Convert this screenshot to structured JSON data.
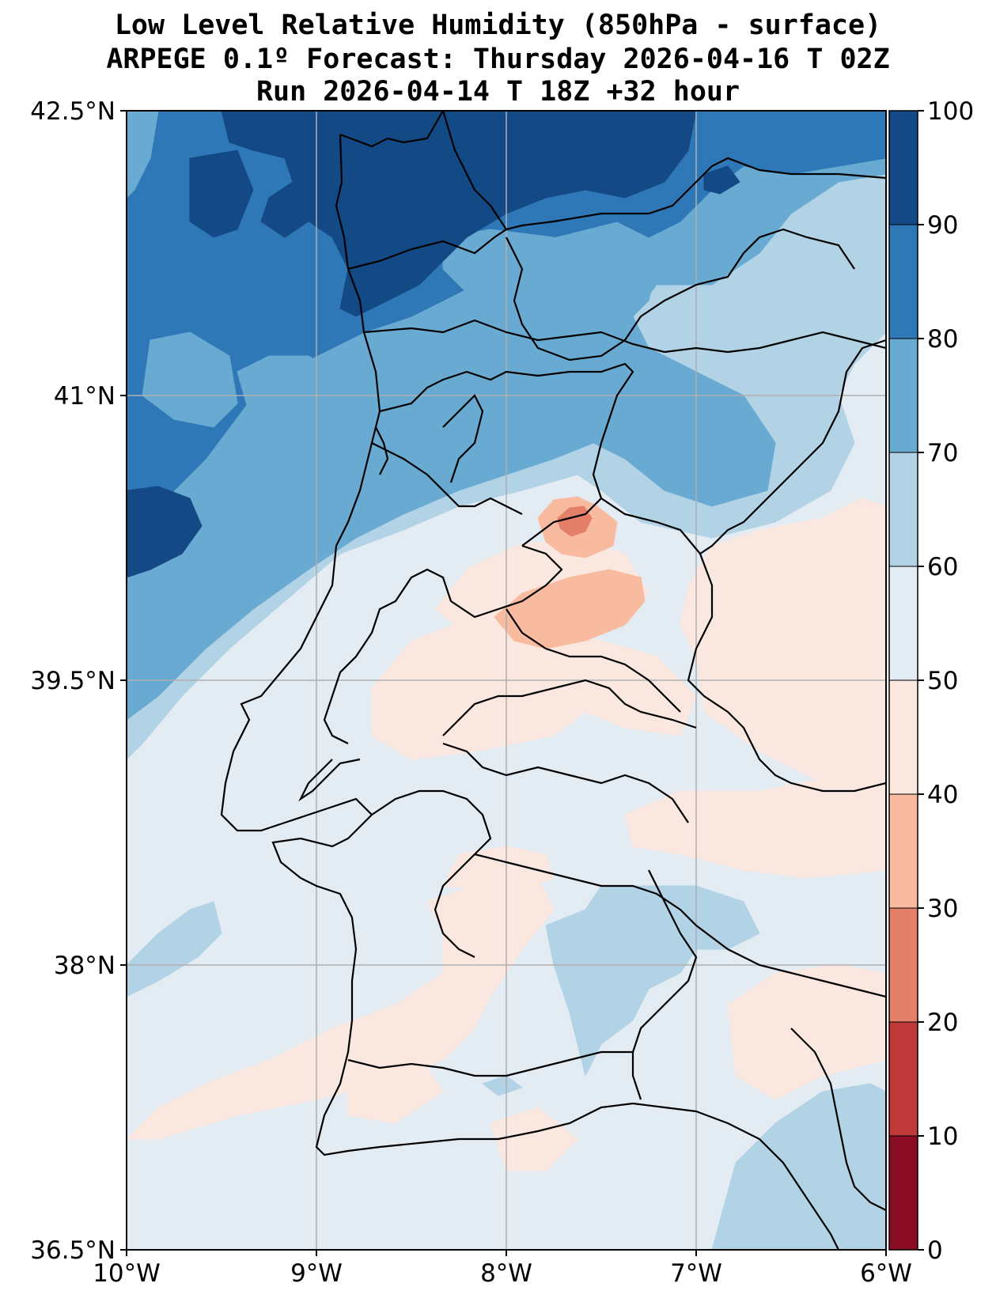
{
  "title": {
    "line1": "Low Level Relative Humidity (850hPa - surface)",
    "line2": "ARPEGE 0.1º Forecast: Thursday 2026-04-16 T 02Z",
    "line3": "Run 2026-04-14 T 18Z +32 hour"
  },
  "map": {
    "lon_range": [
      -10,
      -6
    ],
    "lat_range": [
      36.5,
      42.5
    ],
    "lon_ticks": [
      {
        "value": -10,
        "label": "10°W"
      },
      {
        "value": -9,
        "label": "9°W"
      },
      {
        "value": -8,
        "label": "8°W"
      },
      {
        "value": -7,
        "label": "7°W"
      },
      {
        "value": -6,
        "label": "6°W"
      }
    ],
    "lat_ticks": [
      {
        "value": 42.5,
        "label": "42.5°N"
      },
      {
        "value": 41,
        "label": "41°N"
      },
      {
        "value": 39.5,
        "label": "39.5°N"
      },
      {
        "value": 38,
        "label": "38°N"
      },
      {
        "value": 36.5,
        "label": "36.5°N"
      }
    ]
  },
  "colorbar": {
    "levels": [
      0,
      10,
      20,
      30,
      40,
      50,
      60,
      70,
      80,
      90,
      100
    ],
    "colors": [
      "#8a0c25",
      "#c13a3b",
      "#e4806a",
      "#f8bba0",
      "#fae8e0",
      "#e3ebf3",
      "#b2d3e6",
      "#69aad2",
      "#2f78b7",
      "#134a86"
    ]
  },
  "colors": {
    "border": "#000000",
    "grid": "#b0b0b0"
  }
}
